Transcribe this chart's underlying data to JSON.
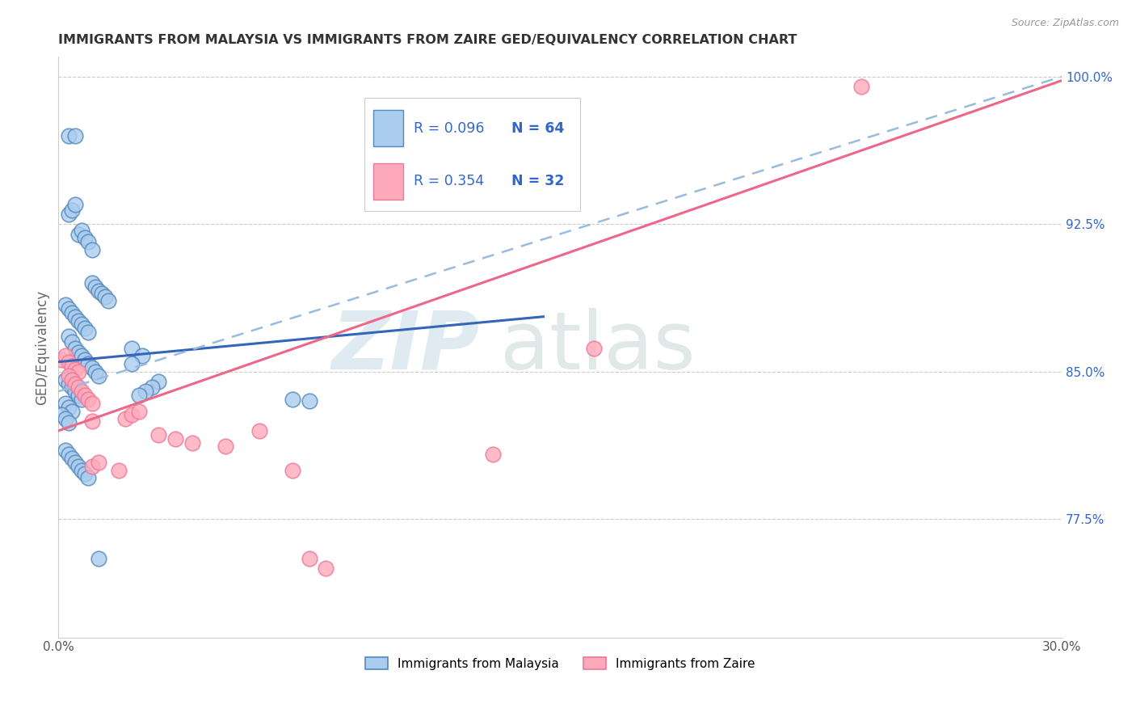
{
  "title": "IMMIGRANTS FROM MALAYSIA VS IMMIGRANTS FROM ZAIRE GED/EQUIVALENCY CORRELATION CHART",
  "source": "Source: ZipAtlas.com",
  "ylabel": "GED/Equivalency",
  "xlim": [
    0.0,
    0.3
  ],
  "ylim": [
    0.715,
    1.01
  ],
  "yticks": [
    0.775,
    0.85,
    0.925,
    1.0
  ],
  "yticklabels": [
    "77.5%",
    "85.0%",
    "92.5%",
    "100.0%"
  ],
  "malaysia_face": "#AACCEE",
  "malaysia_edge": "#5588BB",
  "zaire_face": "#FFAABB",
  "zaire_edge": "#EE7799",
  "trend_malaysia_color": "#3366BB",
  "trend_zaire_color": "#EE6688",
  "trend_dashed_color": "#99BBDD",
  "R_malaysia": 0.096,
  "N_malaysia": 64,
  "R_zaire": 0.354,
  "N_zaire": 32,
  "legend_text_color": "#3366CC",
  "watermark_zip_color": "#CCDDEE",
  "watermark_atlas_color": "#BBCCCC",
  "malaysia_x": [
    0.003,
    0.005,
    0.003,
    0.004,
    0.005,
    0.006,
    0.007,
    0.008,
    0.009,
    0.01,
    0.01,
    0.011,
    0.012,
    0.013,
    0.014,
    0.015,
    0.002,
    0.003,
    0.004,
    0.005,
    0.006,
    0.007,
    0.008,
    0.009,
    0.003,
    0.004,
    0.005,
    0.006,
    0.007,
    0.008,
    0.009,
    0.01,
    0.011,
    0.012,
    0.002,
    0.003,
    0.004,
    0.005,
    0.006,
    0.007,
    0.002,
    0.003,
    0.004,
    0.001,
    0.002,
    0.003,
    0.022,
    0.025,
    0.022,
    0.03,
    0.028,
    0.026,
    0.024,
    0.07,
    0.075,
    0.002,
    0.003,
    0.004,
    0.005,
    0.006,
    0.007,
    0.008,
    0.009,
    0.012
  ],
  "malaysia_y": [
    0.97,
    0.97,
    0.93,
    0.932,
    0.935,
    0.92,
    0.922,
    0.918,
    0.916,
    0.912,
    0.895,
    0.893,
    0.891,
    0.89,
    0.888,
    0.886,
    0.884,
    0.882,
    0.88,
    0.878,
    0.876,
    0.874,
    0.872,
    0.87,
    0.868,
    0.865,
    0.862,
    0.86,
    0.858,
    0.856,
    0.854,
    0.852,
    0.85,
    0.848,
    0.846,
    0.844,
    0.842,
    0.84,
    0.838,
    0.836,
    0.834,
    0.832,
    0.83,
    0.828,
    0.826,
    0.824,
    0.862,
    0.858,
    0.854,
    0.845,
    0.842,
    0.84,
    0.838,
    0.836,
    0.835,
    0.81,
    0.808,
    0.806,
    0.804,
    0.802,
    0.8,
    0.798,
    0.796,
    0.755
  ],
  "zaire_x": [
    0.001,
    0.002,
    0.003,
    0.004,
    0.005,
    0.006,
    0.003,
    0.004,
    0.005,
    0.006,
    0.007,
    0.008,
    0.009,
    0.01,
    0.01,
    0.02,
    0.022,
    0.024,
    0.03,
    0.035,
    0.04,
    0.05,
    0.06,
    0.07,
    0.01,
    0.012,
    0.018,
    0.16,
    0.13,
    0.075,
    0.08,
    0.24
  ],
  "zaire_y": [
    0.856,
    0.858,
    0.855,
    0.853,
    0.851,
    0.85,
    0.848,
    0.846,
    0.844,
    0.842,
    0.84,
    0.838,
    0.836,
    0.834,
    0.825,
    0.826,
    0.828,
    0.83,
    0.818,
    0.816,
    0.814,
    0.812,
    0.82,
    0.8,
    0.802,
    0.804,
    0.8,
    0.862,
    0.808,
    0.755,
    0.75,
    0.995
  ],
  "trend_mal_x0": 0.0,
  "trend_mal_x1": 0.145,
  "trend_mal_y0": 0.855,
  "trend_mal_y1": 0.878,
  "trend_dash_x0": 0.0,
  "trend_dash_x1": 0.3,
  "trend_dash_y0": 0.84,
  "trend_dash_y1": 1.0,
  "trend_zai_x0": 0.0,
  "trend_zai_x1": 0.3,
  "trend_zai_y0": 0.82,
  "trend_zai_y1": 0.998
}
